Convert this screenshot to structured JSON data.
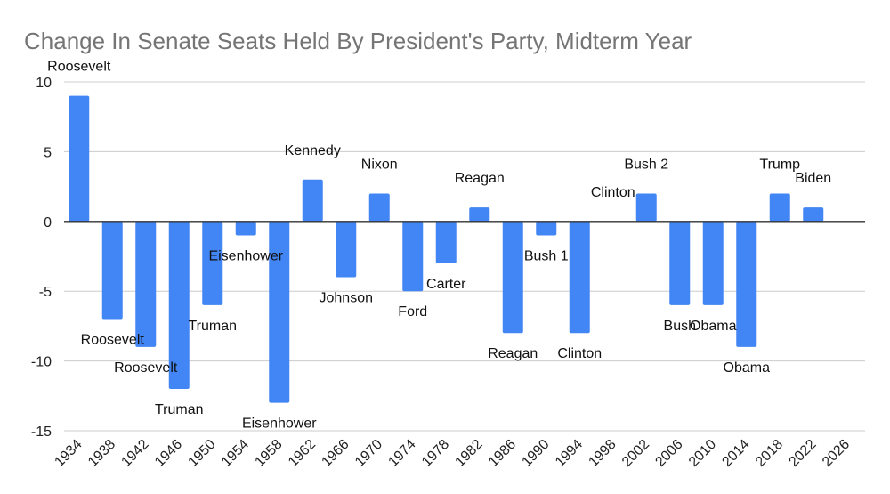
{
  "chart_data": {
    "type": "bar",
    "title": "Change In Senate Seats Held By President's Party, Midterm Year",
    "xlabel": "",
    "ylabel": "",
    "ylim": [
      -15,
      10
    ],
    "yticks": [
      10,
      5,
      0,
      -5,
      -10,
      -15
    ],
    "grid": true,
    "legend": "none",
    "bar_color": "#4285f4",
    "categories": [
      "1934",
      "1938",
      "1942",
      "1946",
      "1950",
      "1954",
      "1958",
      "1962",
      "1966",
      "1970",
      "1974",
      "1978",
      "1982",
      "1986",
      "1990",
      "1994",
      "1998",
      "2002",
      "2006",
      "2010",
      "2014",
      "2018",
      "2022",
      "2026"
    ],
    "values": [
      9,
      -7,
      -9,
      -12,
      -6,
      -1,
      -13,
      3,
      -4,
      2,
      -5,
      -3,
      1,
      -8,
      -1,
      -8,
      0,
      2,
      -6,
      -6,
      -9,
      2,
      1,
      null
    ],
    "annotations": [
      "Roosevelt",
      "Roosevelt",
      "Roosevelt",
      "Truman",
      "Truman",
      "Eisenhower",
      "Eisenhower",
      "Kennedy",
      "Johnson",
      "Nixon",
      "Ford",
      "Carter",
      "Reagan",
      "Reagan",
      "Bush 1",
      "Clinton",
      "Clinton",
      "Bush 2",
      "Bush",
      "Obama",
      "Obama",
      "Trump",
      "Biden",
      ""
    ]
  }
}
